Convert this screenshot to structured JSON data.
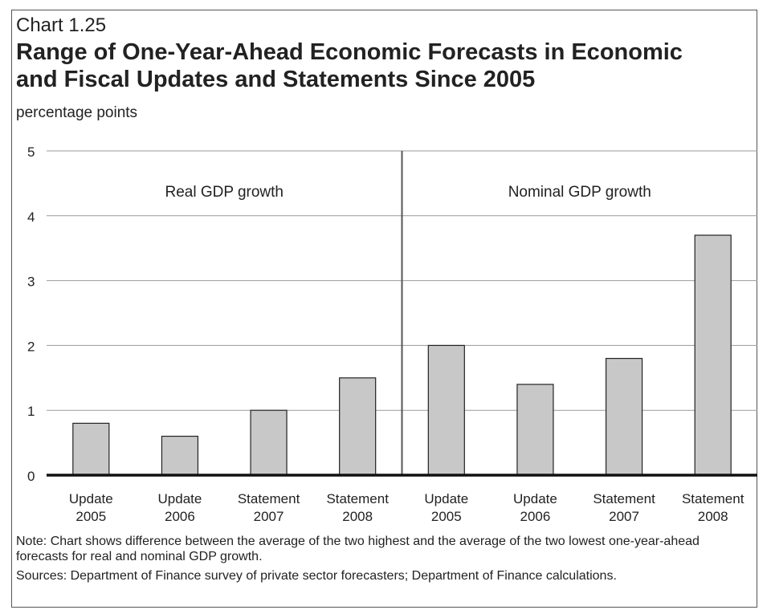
{
  "header": {
    "chart_number": "Chart 1.25",
    "title": "Range of One-Year-Ahead Economic Forecasts in Economic and Fiscal Updates and Statements Since 2005"
  },
  "chart_data": {
    "type": "bar",
    "ylabel": "percentage points",
    "ylim": [
      0,
      5
    ],
    "yticks": [
      "0",
      "1",
      "2",
      "3",
      "4",
      "5"
    ],
    "grid": true,
    "bar_color": "#c8c8c8",
    "panels": [
      {
        "label": "Real GDP growth",
        "categories": [
          [
            "Update",
            "2005"
          ],
          [
            "Update",
            "2006"
          ],
          [
            "Statement",
            "2007"
          ],
          [
            "Statement",
            "2008"
          ]
        ],
        "values": [
          0.8,
          0.6,
          1.0,
          1.5
        ]
      },
      {
        "label": "Nominal GDP growth",
        "categories": [
          [
            "Update",
            "2005"
          ],
          [
            "Update",
            "2006"
          ],
          [
            "Statement",
            "2007"
          ],
          [
            "Statement",
            "2008"
          ]
        ],
        "values": [
          2.0,
          1.4,
          1.8,
          3.7
        ]
      }
    ]
  },
  "footer": {
    "note": "Note: Chart shows difference between the average of the two highest and the average of the two lowest one-year-ahead forecasts for real and nominal GDP growth.",
    "sources": "Sources: Department of Finance survey of private sector forecasters; Department of Finance calculations."
  }
}
